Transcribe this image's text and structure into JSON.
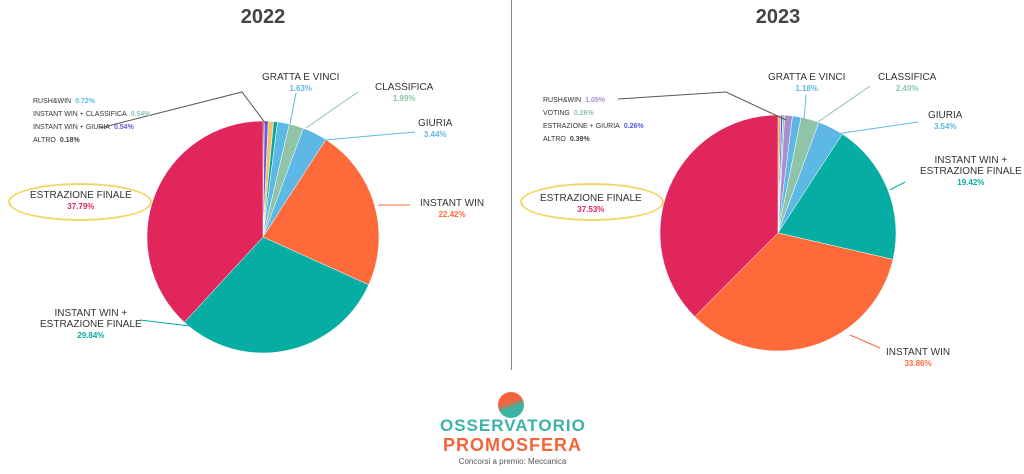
{
  "chart_data": [
    {
      "type": "pie",
      "title": "2022",
      "slices": [
        {
          "label": "ALTRO",
          "value": 0.18,
          "color": "#555555"
        },
        {
          "label": "INSTANT WIN + GIURIA",
          "value": 0.54,
          "color": "#6f57d9"
        },
        {
          "label": "RUSH&WIN",
          "value": 0.72,
          "color": "#f0c36a"
        },
        {
          "label": "INSTANT WIN + CLASSIFICA",
          "value": 0.54,
          "color": "#0aa89a"
        },
        {
          "label": "GRATTA E VINCI",
          "value": 1.63,
          "color": "#5db8e6"
        },
        {
          "label": "CLASSIFICA",
          "value": 1.99,
          "color": "#8fc4a8"
        },
        {
          "label": "GIURIA",
          "value": 3.44,
          "color": "#5db8e6"
        },
        {
          "label": "INSTANT WIN",
          "value": 22.42,
          "color": "#fe6a3a"
        },
        {
          "label": "INSTANT WIN + ESTRAZIONE FINALE",
          "value": 29.84,
          "color": "#06ada2"
        },
        {
          "label": "ESTRAZIONE FINALE",
          "value": 37.79,
          "color": "#e0265a"
        }
      ]
    },
    {
      "type": "pie",
      "title": "2023",
      "slices": [
        {
          "label": "ALTRO",
          "value": 0.39,
          "color": "#f0a86a"
        },
        {
          "label": "ESTRAZIONE + GIURIA",
          "value": 0.26,
          "color": "#4b5cf0"
        },
        {
          "label": "VOTING",
          "value": 0.26,
          "color": "#8fc4a8"
        },
        {
          "label": "RUSH&WIN",
          "value": 1.05,
          "color": "#a98fd0"
        },
        {
          "label": "GRATTA E VINCI",
          "value": 1.18,
          "color": "#5db8e6"
        },
        {
          "label": "CLASSIFICA",
          "value": 2.49,
          "color": "#8fc4a8"
        },
        {
          "label": "GIURIA",
          "value": 3.54,
          "color": "#5db8e6"
        },
        {
          "label": "INSTANT WIN + ESTRAZIONE FINALE",
          "value": 19.42,
          "color": "#06ada2"
        },
        {
          "label": "INSTANT WIN",
          "value": 33.86,
          "color": "#fe6a3a"
        },
        {
          "label": "ESTRAZIONE FINALE",
          "value": 37.53,
          "color": "#e0265a"
        }
      ]
    }
  ],
  "labels2022": {
    "gratta": {
      "name": "GRATTA E VINCI",
      "pct": "1.63%"
    },
    "classifica": {
      "name": "CLASSIFICA",
      "pct": "1.99%"
    },
    "giuria": {
      "name": "GIURIA",
      "pct": "3.44%"
    },
    "instant": {
      "name": "INSTANT WIN",
      "pct": "22.42%"
    },
    "iwef_1": "INSTANT WIN +",
    "iwef_2": "ESTRAZIONE FINALE",
    "iwef_pct": "29.84%",
    "ef": {
      "name": "ESTRAZIONE FINALE",
      "pct": "37.79%"
    },
    "small": [
      {
        "name": "RUSH&WIN",
        "pct": "0.72%",
        "color": "#5db8e6"
      },
      {
        "name": "INSTANT WIN + CLASSIFICA",
        "pct": "0.54%",
        "color": "#8fc4a8"
      },
      {
        "name": "INSTANT WIN + GIURIA",
        "pct": "0.54%",
        "color": "#6f57d9"
      },
      {
        "name": "ALTRO",
        "pct": "0.18%",
        "color": "#444444"
      }
    ]
  },
  "labels2023": {
    "gratta": {
      "name": "GRATTA E VINCI",
      "pct": "1.18%"
    },
    "classifica": {
      "name": "CLASSIFICA",
      "pct": "2.49%"
    },
    "giuria": {
      "name": "GIURIA",
      "pct": "3.54%"
    },
    "instant": {
      "name": "INSTANT WIN",
      "pct": "33.86%"
    },
    "iwef_1": "INSTANT WIN +",
    "iwef_2": "ESTRAZIONE FINALE",
    "iwef_pct": "19.42%",
    "ef": {
      "name": "ESTRAZIONE FINALE",
      "pct": "37.53%"
    },
    "small": [
      {
        "name": "RUSH&WIN",
        "pct": "1.05%",
        "color": "#a98fd0"
      },
      {
        "name": "VOTING",
        "pct": "0.26%",
        "color": "#8fc4a8"
      },
      {
        "name": "ESTRAZIONE + GIURIA",
        "pct": "0.26%",
        "color": "#4b5cf0"
      },
      {
        "name": "ALTRO",
        "pct": "0.39%",
        "color": "#444444"
      }
    ]
  },
  "logo": {
    "line1": "OSSERVATORIO",
    "line2": "PROMOSFERA",
    "subtitle": "Concorsi a premio: Meccanica"
  }
}
